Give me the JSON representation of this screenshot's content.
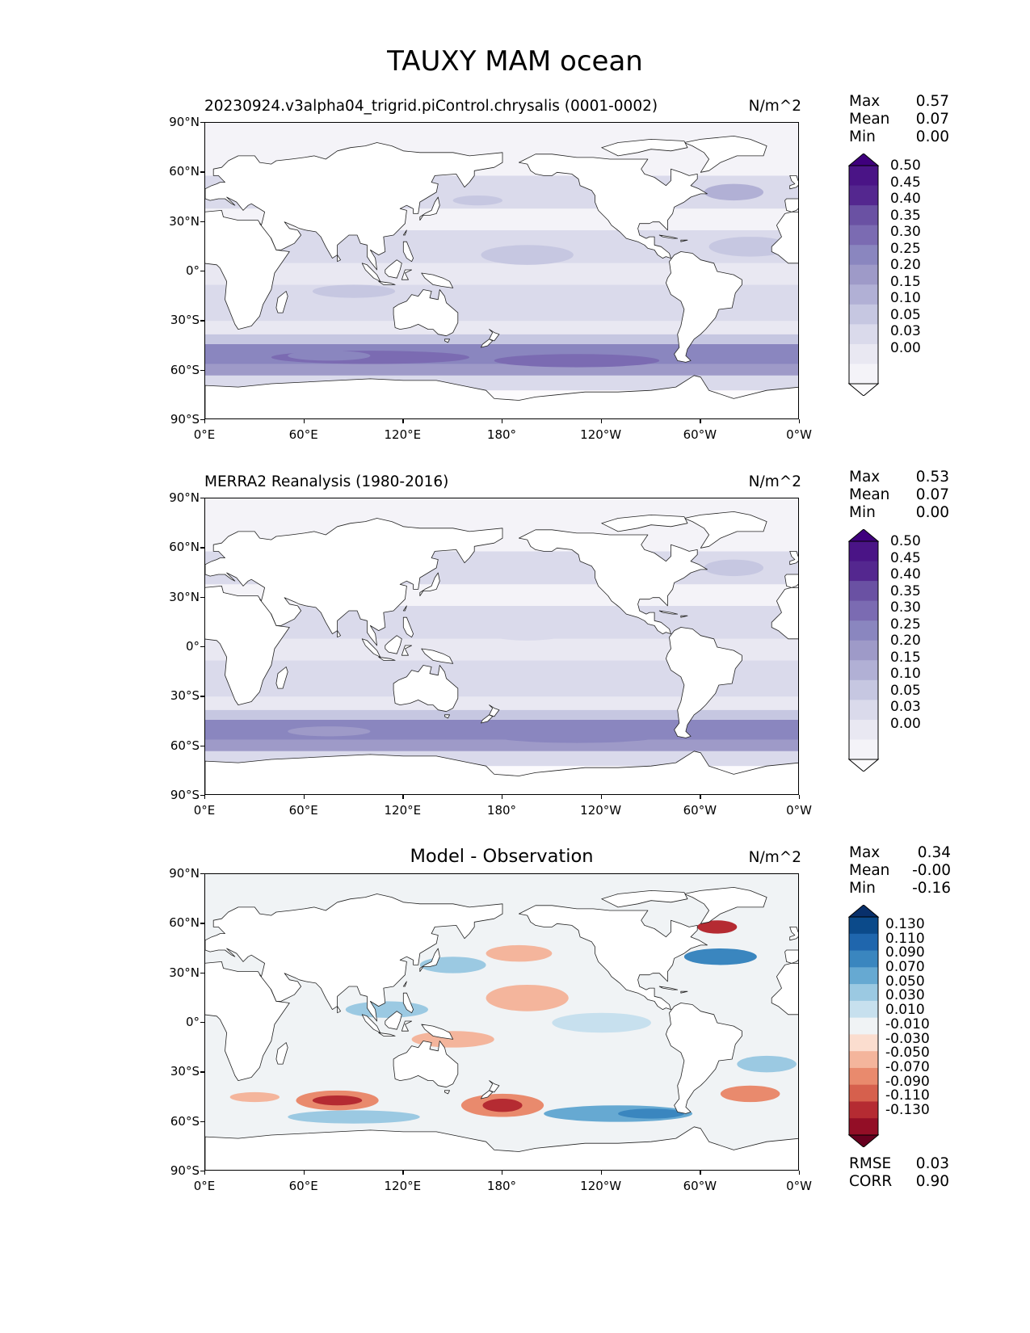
{
  "figure": {
    "title": "TAUXY MAM ocean"
  },
  "panels": [
    {
      "id": "model",
      "title": "20230924.v3alpha04_trigrid.piControl.chrysalis (0001-0002)",
      "units": "N/m^2",
      "stats": {
        "labels": [
          "Max",
          "Mean",
          "Min"
        ],
        "values": [
          "0.57",
          "0.07",
          "0.00"
        ]
      },
      "colorbar": {
        "colormap": "purples",
        "levels": [
          "0.50",
          "0.45",
          "0.40",
          "0.35",
          "0.30",
          "0.25",
          "0.20",
          "0.15",
          "0.10",
          "0.05",
          "0.03",
          "0.00"
        ],
        "colors": [
          "#3f007d",
          "#4a1486",
          "#54278f",
          "#6a51a3",
          "#7b6bb2",
          "#8a86bf",
          "#9e9ac8",
          "#b1b0d5",
          "#c6c7e1",
          "#dadaeb",
          "#e9e8f2",
          "#f4f3f8",
          "#fcfbfd"
        ]
      }
    },
    {
      "id": "obs",
      "title": "MERRA2 Reanalysis (1980-2016)",
      "units": "N/m^2",
      "stats": {
        "labels": [
          "Max",
          "Mean",
          "Min"
        ],
        "values": [
          "0.53",
          "0.07",
          "0.00"
        ]
      },
      "colorbar": {
        "colormap": "purples",
        "levels": [
          "0.50",
          "0.45",
          "0.40",
          "0.35",
          "0.30",
          "0.25",
          "0.20",
          "0.15",
          "0.10",
          "0.05",
          "0.03",
          "0.00"
        ],
        "colors": [
          "#3f007d",
          "#4a1486",
          "#54278f",
          "#6a51a3",
          "#7b6bb2",
          "#8a86bf",
          "#9e9ac8",
          "#b1b0d5",
          "#c6c7e1",
          "#dadaeb",
          "#e9e8f2",
          "#f4f3f8",
          "#fcfbfd"
        ]
      }
    },
    {
      "id": "diff",
      "title": "Model - Observation",
      "units": "N/m^2",
      "stats": {
        "labels": [
          "Max",
          "Mean",
          "Min"
        ],
        "values": [
          "0.34",
          "-0.00",
          "-0.16"
        ]
      },
      "colorbar": {
        "colormap": "RdBu",
        "levels": [
          "0.130",
          "0.110",
          "0.090",
          "0.070",
          "0.050",
          "0.030",
          "0.010",
          "-0.010",
          "-0.030",
          "-0.050",
          "-0.070",
          "-0.090",
          "-0.110",
          "-0.130"
        ],
        "colors": [
          "#08306b",
          "#0b4a8a",
          "#1f66ad",
          "#3a86bf",
          "#66a9d2",
          "#9bc9e2",
          "#c7e0ee",
          "#f0f3f5",
          "#fbddcf",
          "#f4b59c",
          "#e98a6d",
          "#d6604d",
          "#b52b32",
          "#930e26",
          "#67001f"
        ]
      },
      "metrics": {
        "labels": [
          "RMSE",
          "CORR"
        ],
        "values": [
          "0.03",
          "0.90"
        ]
      }
    }
  ],
  "axes": {
    "lat_ticks": [
      "90°N",
      "60°N",
      "30°N",
      "0°",
      "30°S",
      "60°S",
      "90°S"
    ],
    "lon_ticks": [
      "0°E",
      "60°E",
      "120°E",
      "180°",
      "120°W",
      "60°W",
      "0°W"
    ],
    "lat_range": [
      -90,
      90
    ],
    "lon_range": [
      0,
      360
    ]
  }
}
